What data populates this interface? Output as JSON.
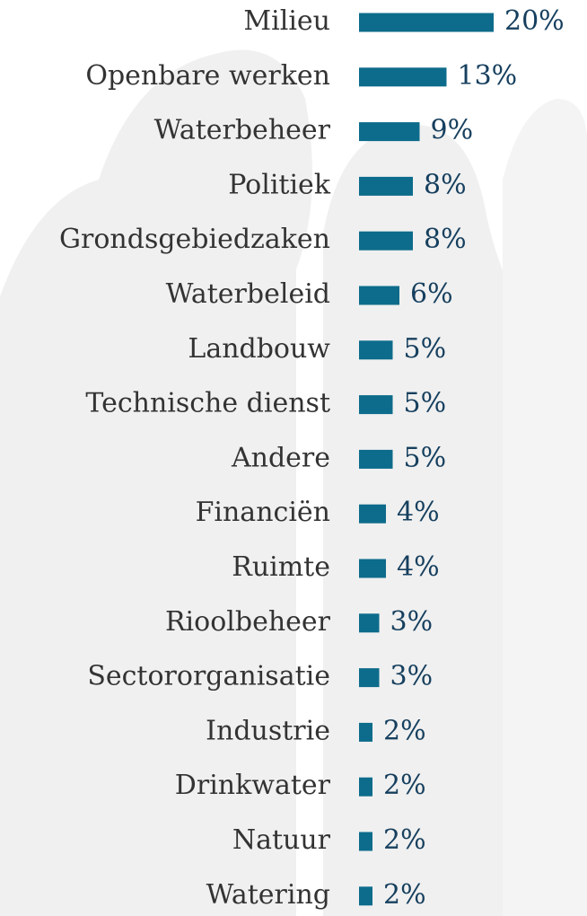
{
  "chart_data": {
    "type": "bar",
    "orientation": "horizontal",
    "categories": [
      "Milieu",
      "Openbare werken",
      "Waterbeheer",
      "Politiek",
      "Grondsgebiedzaken",
      "Waterbeleid",
      "Landbouw",
      "Technische dienst",
      "Andere",
      "Financiën",
      "Ruimte",
      "Rioolbeheer",
      "Sectororganisatie",
      "Industrie",
      "Drinkwater",
      "Natuur",
      "Watering"
    ],
    "values": [
      20,
      13,
      9,
      8,
      8,
      6,
      5,
      5,
      5,
      4,
      4,
      3,
      3,
      2,
      2,
      2,
      2
    ],
    "value_labels": [
      "20%",
      "13%",
      "9%",
      "8%",
      "8%",
      "6%",
      "5%",
      "5%",
      "5%",
      "4%",
      "4%",
      "3%",
      "3%",
      "2%",
      "2%",
      "2%",
      "2%"
    ],
    "color": "#0d6c8b"
  }
}
